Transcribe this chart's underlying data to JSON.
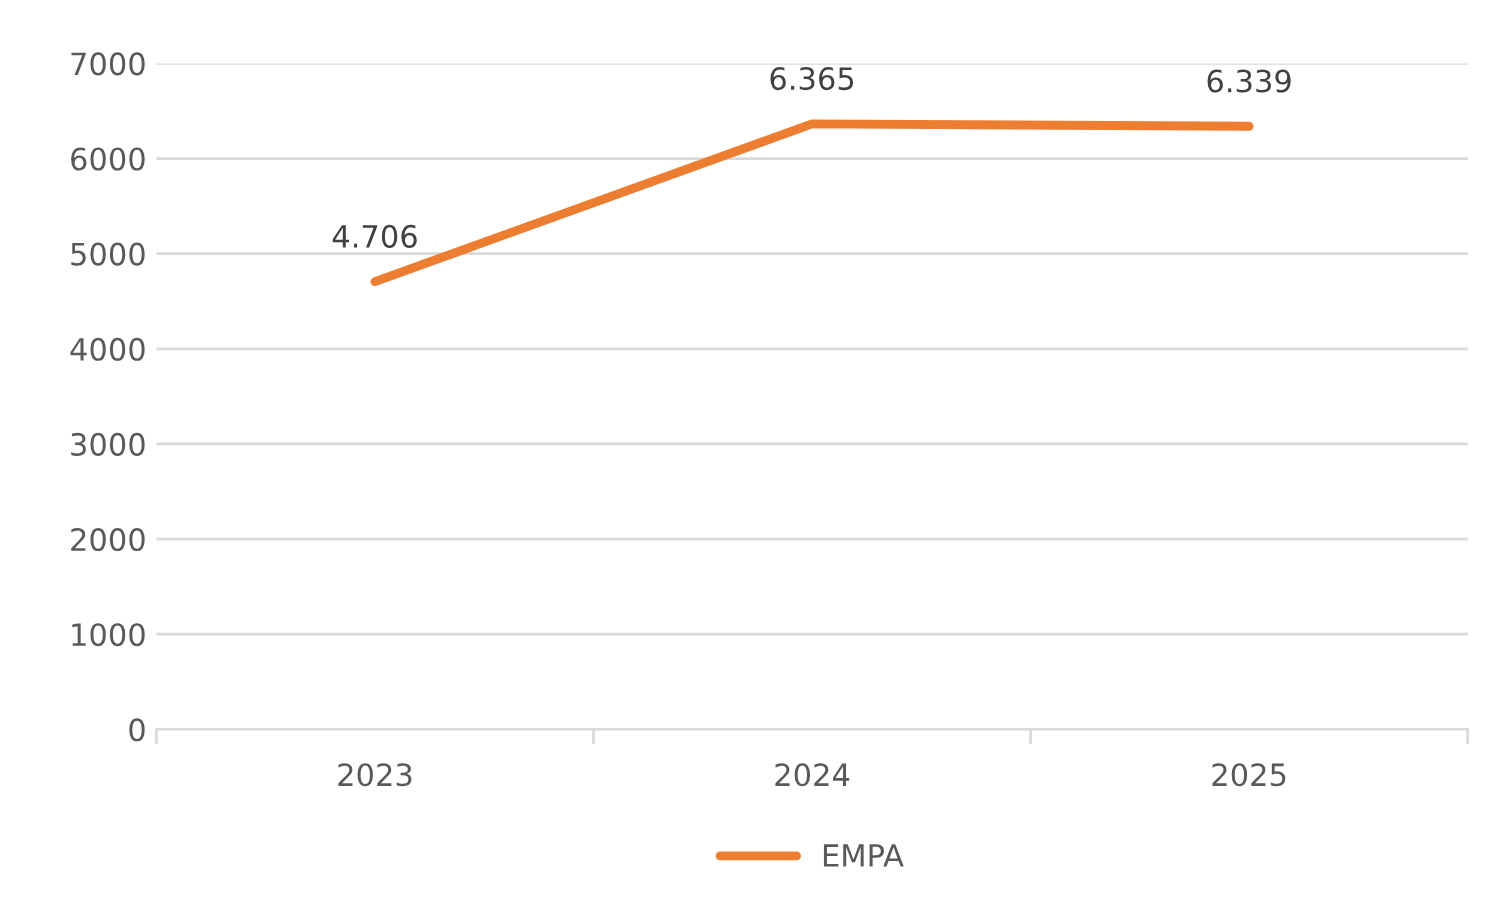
{
  "chart_data": {
    "type": "line",
    "categories": [
      "2023",
      "2024",
      "2025"
    ],
    "series": [
      {
        "name": "EMPA",
        "color": "#ed7d31",
        "values": [
          4706,
          6365,
          6339
        ],
        "value_labels": [
          "4.706",
          "6.365",
          "6.339"
        ]
      }
    ],
    "ylim": [
      0,
      7000
    ],
    "yticks": [
      0,
      1000,
      2000,
      3000,
      4000,
      5000,
      6000,
      7000
    ],
    "grid": "y",
    "legend": "bottom",
    "marker": "none",
    "line_style": "solid"
  }
}
